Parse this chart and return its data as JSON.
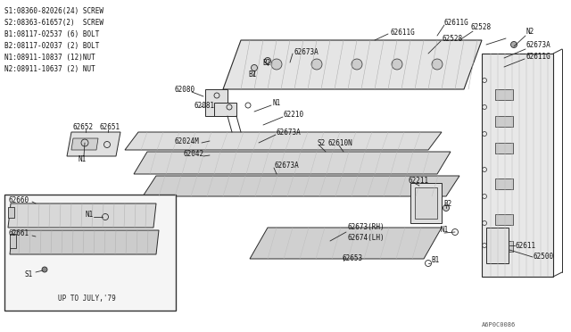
{
  "bg_color": "#ffffff",
  "line_color": "#2a2a2a",
  "diagram_code": "A6P0C0086",
  "legend": [
    "S1:08360-82026(24) SCREW",
    "S2:08363-61657(2)  SCREW",
    "B1:08117-02537 (6) BOLT",
    "B2:08117-02037 (2) BOLT",
    "N1:08911-10837 (12)NUT",
    "N2:08911-10637 (2) NUT"
  ]
}
